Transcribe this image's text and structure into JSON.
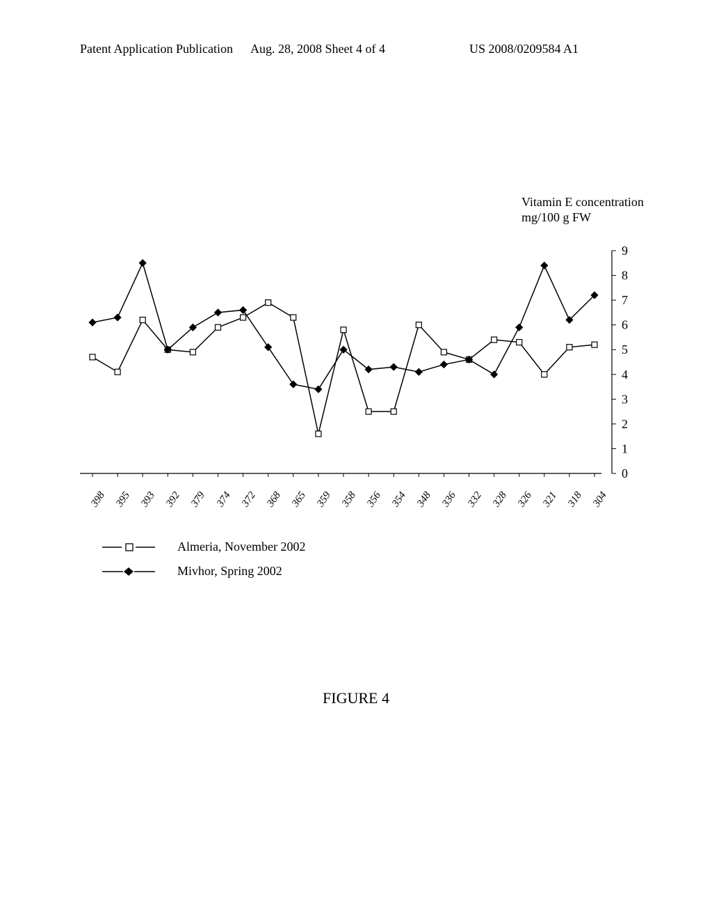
{
  "header": {
    "left": "Patent Application Publication",
    "center": "Aug. 28, 2008  Sheet 4 of 4",
    "right": "US 2008/0209584 A1"
  },
  "chart": {
    "type": "line",
    "ylabel_line1": "Vitamin E concentration",
    "ylabel_line2": "mg/100 g FW",
    "yticks": [
      0,
      1,
      2,
      3,
      4,
      5,
      6,
      7,
      8,
      9
    ],
    "ylim": [
      0,
      9
    ],
    "xticks": [
      "398",
      "395",
      "393",
      "392",
      "379",
      "374",
      "372",
      "368",
      "365",
      "359",
      "358",
      "356",
      "354",
      "348",
      "336",
      "332",
      "328",
      "326",
      "321",
      "318",
      "304"
    ],
    "tick_fontsize": 15,
    "tick_fontstyle": "italic",
    "xtick_rotation": -55,
    "background_color": "#ffffff",
    "axis_color": "#000000",
    "line_width": 1.5,
    "series": [
      {
        "name": "Almeria, November 2002",
        "marker": "square-open",
        "marker_size": 8,
        "color": "#000000",
        "values": [
          4.7,
          4.1,
          6.2,
          5.0,
          4.9,
          5.9,
          6.3,
          6.9,
          6.3,
          1.6,
          5.8,
          2.5,
          2.5,
          6.0,
          4.9,
          4.6,
          5.4,
          5.3,
          4.0,
          5.1,
          5.2
        ]
      },
      {
        "name": "Mivhor, Spring 2002",
        "marker": "diamond-filled",
        "marker_size": 9,
        "color": "#000000",
        "values": [
          6.1,
          6.3,
          8.5,
          5.0,
          5.9,
          6.5,
          6.6,
          5.1,
          3.6,
          3.4,
          5.0,
          4.2,
          4.3,
          4.1,
          4.4,
          4.6,
          4.0,
          5.9,
          8.4,
          6.2,
          7.2
        ]
      }
    ]
  },
  "legend": {
    "items": [
      {
        "label": "Almeria, November 2002"
      },
      {
        "label": "Mivhor, Spring 2002"
      }
    ]
  },
  "figure_label": "FIGURE 4"
}
